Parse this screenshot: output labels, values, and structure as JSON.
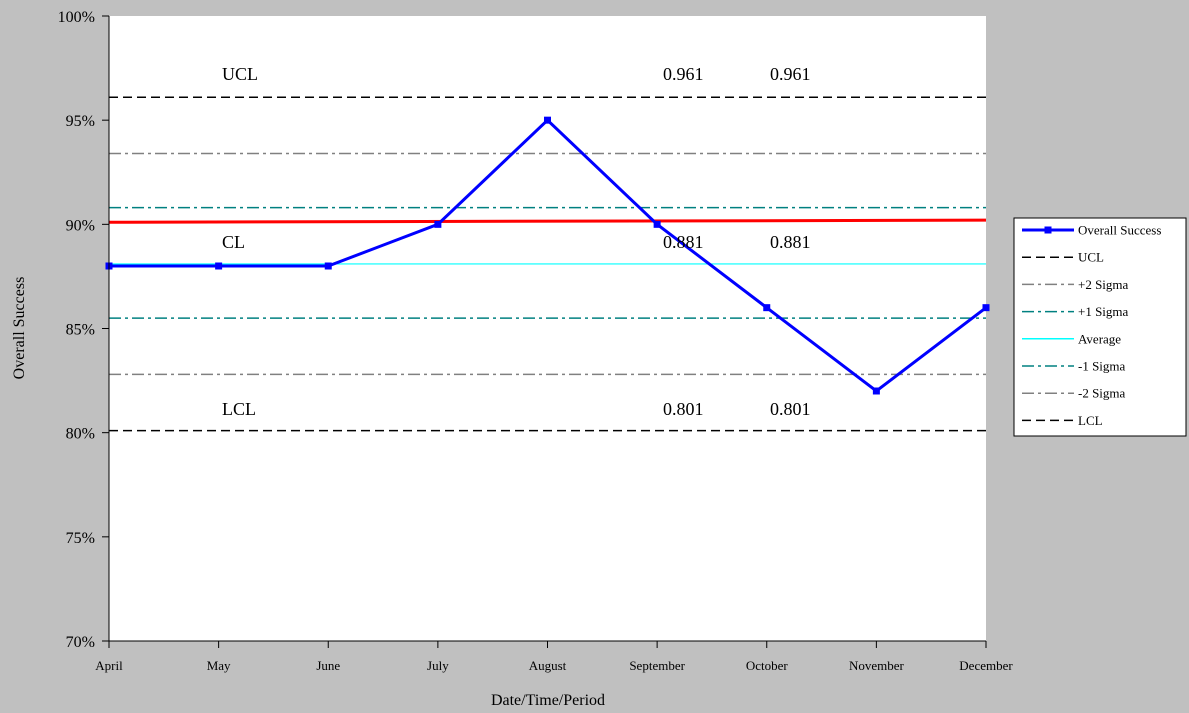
{
  "chart_data": {
    "type": "line",
    "xlabel": "Date/Time/Period",
    "ylabel": "Overall Success",
    "ylim": [
      0.7,
      1.0
    ],
    "y_ticks": [
      0.7,
      0.75,
      0.8,
      0.85,
      0.9,
      0.95,
      1.0
    ],
    "y_tick_labels": [
      "70%",
      "75%",
      "80%",
      "85%",
      "90%",
      "95%",
      "100%"
    ],
    "categories": [
      "April",
      "May",
      "June",
      "July",
      "August",
      "September",
      "October",
      "November",
      "December"
    ],
    "series": [
      {
        "name": "Overall Success",
        "values": [
          0.88,
          0.88,
          0.88,
          0.9,
          0.95,
          0.9,
          0.86,
          0.82,
          0.86
        ],
        "color": "#0000ff",
        "style": "solid-markers"
      },
      {
        "name": "UCL",
        "value": 0.961,
        "color": "#000000",
        "style": "dash"
      },
      {
        "name": "+2 Sigma",
        "value": 0.934,
        "color": "#808080",
        "style": "dashdot"
      },
      {
        "name": "+1 Sigma",
        "value": 0.908,
        "color": "#008080",
        "style": "dashdot"
      },
      {
        "name": "Average",
        "value": 0.881,
        "color": "#00ffff",
        "style": "solid"
      },
      {
        "name": "-1 Sigma",
        "value": 0.855,
        "color": "#008080",
        "style": "dashdot"
      },
      {
        "name": "-2 Sigma",
        "value": 0.828,
        "color": "#808080",
        "style": "dashdot"
      },
      {
        "name": "LCL",
        "value": 0.801,
        "color": "#000000",
        "style": "dash"
      }
    ],
    "trend_line": {
      "start": 0.901,
      "end": 0.902,
      "color": "#ff0000"
    },
    "annotations": {
      "ucl": {
        "label": "UCL",
        "values": [
          "0.961",
          "0.961"
        ]
      },
      "cl": {
        "label": "CL",
        "values": [
          "0.881",
          "0.881"
        ]
      },
      "lcl": {
        "label": "LCL",
        "values": [
          "0.801",
          "0.801"
        ]
      }
    },
    "grid": false,
    "legend_position": "right"
  }
}
